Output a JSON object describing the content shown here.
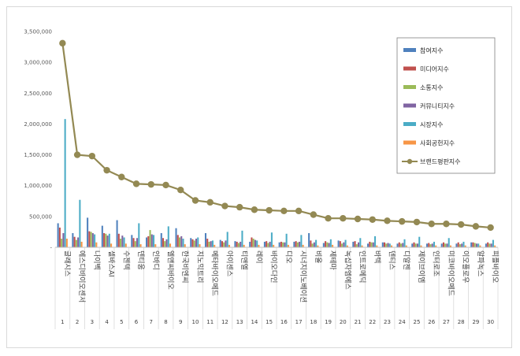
{
  "chart_data": {
    "type": "bar",
    "title": "",
    "xlabel": "",
    "ylabel": "",
    "ylim": [
      0,
      3500000
    ],
    "yticks": [
      0,
      500000,
      1000000,
      1500000,
      2000000,
      2500000,
      3000000,
      3500000
    ],
    "ytick_labels": [
      "-",
      "500,000",
      "1,000,000",
      "1,500,000",
      "2,000,000",
      "2,500,000",
      "3,000,000",
      "3,500,000"
    ],
    "grid": false,
    "legend_position": "top-right",
    "categories": [
      "글래시스",
      "에스디바이오센서",
      "나이벡",
      "셀바스AI",
      "수젠텍",
      "덴티움",
      "인바디",
      "엘앤씨바이오",
      "한국비엔씨",
      "지노믹트리",
      "메타바이오메드",
      "아이센스",
      "티앤엘",
      "레이",
      "바이오다인",
      "디오",
      "시너지이노베이션",
      "비올",
      "제테마",
      "녹십자엠에스",
      "인트로메딕",
      "바텍",
      "덴티스",
      "디알젠",
      "제이브이엠",
      "인터로조",
      "미코바이오메드",
      "이오플로우",
      "알파녹스",
      "피플바이오"
    ],
    "ranks": [
      "1",
      "2",
      "3",
      "4",
      "5",
      "6",
      "7",
      "8",
      "9",
      "10",
      "11",
      "12",
      "13",
      "14",
      "15",
      "16",
      "17",
      "18",
      "19",
      "20",
      "21",
      "22",
      "23",
      "24",
      "25",
      "26",
      "27",
      "28",
      "29",
      "30"
    ],
    "series": [
      {
        "name": "참여지수",
        "color": "#4f81bd",
        "type": "bar",
        "values": [
          390000,
          230000,
          480000,
          350000,
          440000,
          200000,
          160000,
          230000,
          310000,
          150000,
          230000,
          120000,
          100000,
          90000,
          90000,
          80000,
          90000,
          230000,
          70000,
          110000,
          90000,
          60000,
          80000,
          60000,
          60000,
          60000,
          60000,
          60000,
          80000,
          60000
        ]
      },
      {
        "name": "미디어지수",
        "color": "#c0504d",
        "type": "bar",
        "values": [
          320000,
          170000,
          260000,
          230000,
          220000,
          150000,
          180000,
          150000,
          200000,
          130000,
          140000,
          100000,
          90000,
          160000,
          100000,
          90000,
          100000,
          110000,
          100000,
          100000,
          100000,
          90000,
          80000,
          80000,
          80000,
          70000,
          80000,
          80000,
          80000,
          80000
        ]
      },
      {
        "name": "소통지수",
        "color": "#9bbb59",
        "type": "bar",
        "values": [
          140000,
          120000,
          250000,
          220000,
          140000,
          100000,
          280000,
          100000,
          160000,
          110000,
          90000,
          80000,
          70000,
          140000,
          70000,
          80000,
          80000,
          60000,
          80000,
          60000,
          50000,
          80000,
          60000,
          60000,
          60000,
          50000,
          60000,
          50000,
          70000,
          60000
        ]
      },
      {
        "name": "커뮤니티지수",
        "color": "#8064a2",
        "type": "bar",
        "values": [
          230000,
          160000,
          230000,
          190000,
          190000,
          150000,
          210000,
          130000,
          180000,
          140000,
          100000,
          110000,
          90000,
          120000,
          90000,
          80000,
          90000,
          80000,
          70000,
          80000,
          80000,
          80000,
          70000,
          70000,
          60000,
          60000,
          60000,
          60000,
          60000,
          60000
        ]
      },
      {
        "name": "시장지수",
        "color": "#4bacc6",
        "type": "bar",
        "values": [
          2080000,
          770000,
          210000,
          220000,
          160000,
          390000,
          200000,
          340000,
          140000,
          160000,
          110000,
          250000,
          270000,
          110000,
          240000,
          220000,
          200000,
          120000,
          130000,
          120000,
          150000,
          180000,
          60000,
          130000,
          170000,
          90000,
          150000,
          90000,
          60000,
          120000
        ]
      },
      {
        "name": "사회공헌지수",
        "color": "#f79646",
        "type": "bar",
        "values": [
          140000,
          90000,
          80000,
          60000,
          60000,
          50000,
          50000,
          60000,
          50000,
          50000,
          40000,
          40000,
          40000,
          40000,
          40000,
          40000,
          40000,
          30000,
          40000,
          30000,
          30000,
          30000,
          30000,
          30000,
          30000,
          30000,
          30000,
          30000,
          30000,
          30000
        ]
      },
      {
        "name": "브랜드평판지수",
        "color": "#938953",
        "type": "line",
        "values": [
          3310000,
          1500000,
          1480000,
          1250000,
          1140000,
          1030000,
          1020000,
          1010000,
          930000,
          760000,
          730000,
          670000,
          650000,
          610000,
          600000,
          590000,
          590000,
          530000,
          470000,
          470000,
          460000,
          450000,
          430000,
          420000,
          410000,
          380000,
          380000,
          370000,
          340000,
          320000
        ]
      }
    ]
  }
}
